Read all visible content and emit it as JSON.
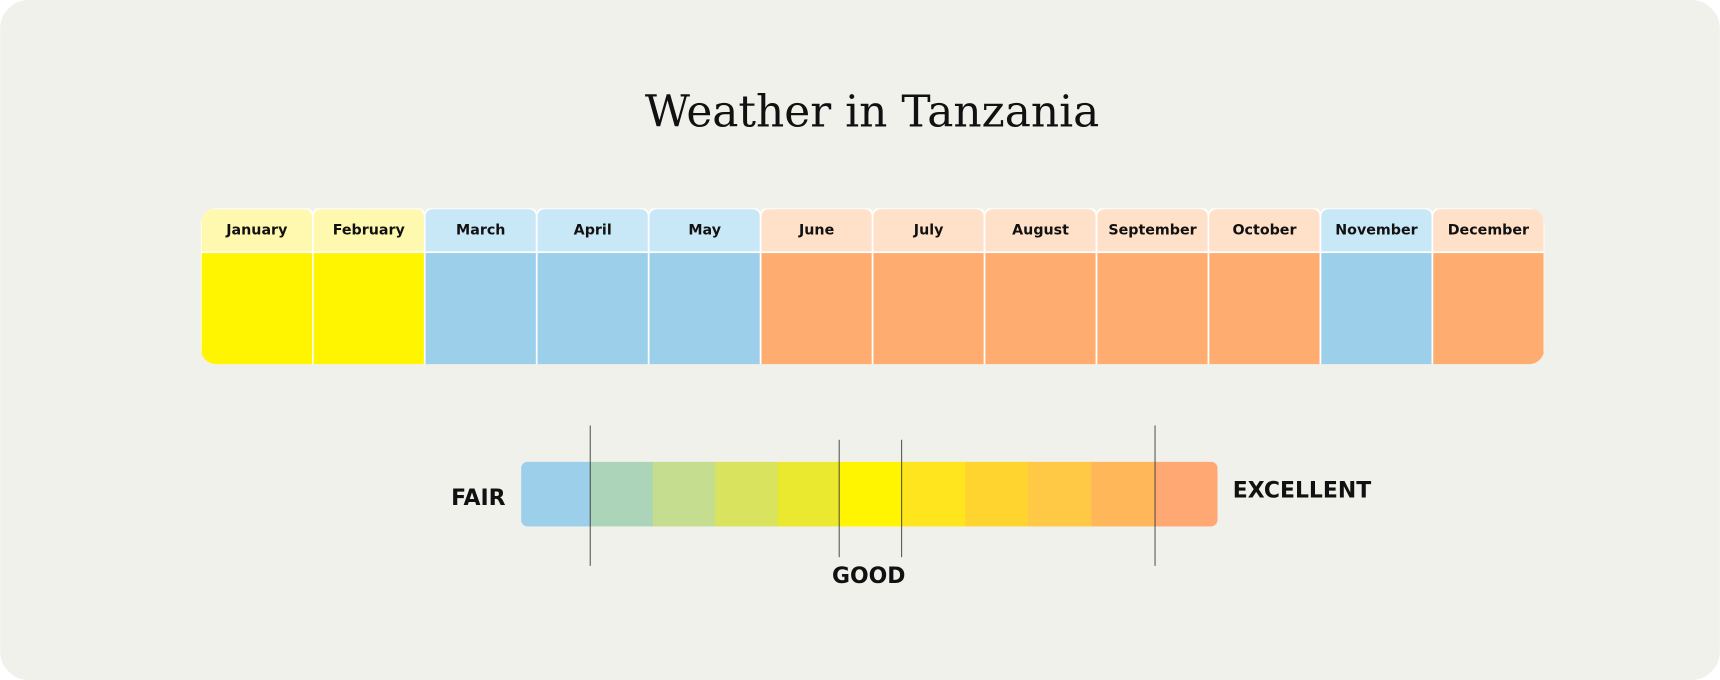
{
  "title": "Weather in Tanzania",
  "months": [
    {
      "name": "January",
      "color": "#fff500",
      "header_color": "#fff9b0"
    },
    {
      "name": "February",
      "color": "#fff500",
      "header_color": "#fff9b0"
    },
    {
      "name": "March",
      "color": "#9bcfea",
      "header_color": "#c9e8f7"
    },
    {
      "name": "April",
      "color": "#9bcfea",
      "header_color": "#c9e8f7"
    },
    {
      "name": "May",
      "color": "#9bcfea",
      "header_color": "#c9e8f7"
    },
    {
      "name": "June",
      "color": "#ffac70",
      "header_color": "#ffe0c8"
    },
    {
      "name": "July",
      "color": "#ffac70",
      "header_color": "#ffe0c8"
    },
    {
      "name": "August",
      "color": "#ffac70",
      "header_color": "#ffe0c8"
    },
    {
      "name": "September",
      "color": "#ffac70",
      "header_color": "#ffe0c8"
    },
    {
      "name": "October",
      "color": "#ffac70",
      "header_color": "#ffe0c8"
    },
    {
      "name": "November",
      "color": "#9bcfea",
      "header_color": "#c9e8f7"
    },
    {
      "name": "December",
      "color": "#ffac70",
      "header_color": "#ffe0c8"
    }
  ],
  "legend": {
    "low": "FAIR",
    "mid": "GOOD",
    "high": "EXCELLENT",
    "colors": [
      "#9bcfea",
      "#acd4b9",
      "#c4dd8e",
      "#d9e35d",
      "#ebe830",
      "#fff500",
      "#ffe51e",
      "#ffd42e",
      "#ffc845",
      "#ffb75a",
      "#ffa874"
    ]
  }
}
